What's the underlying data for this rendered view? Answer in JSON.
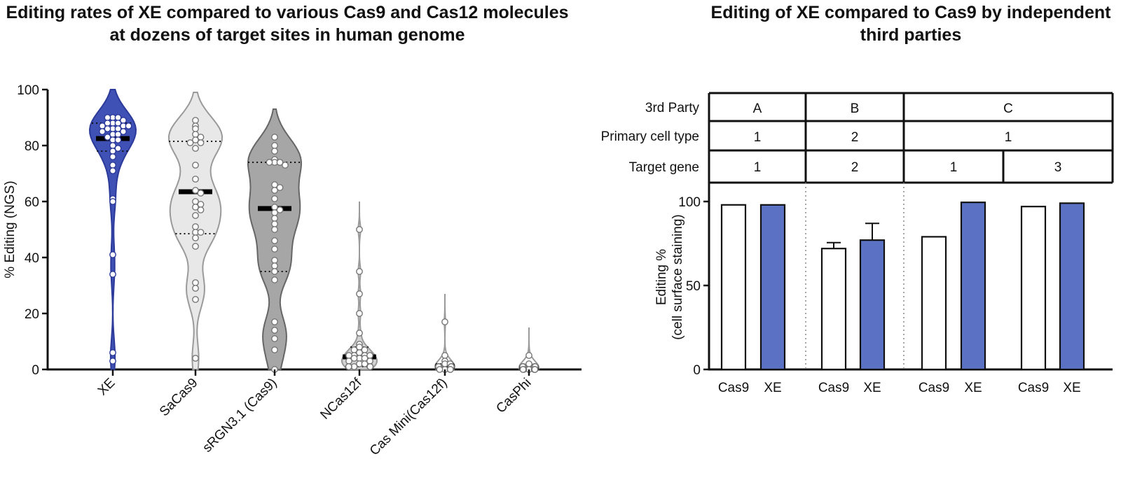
{
  "chart_data": [
    {
      "type": "violin",
      "title": "Editing rates of XE compared to various Cas9 and Cas12 molecules at dozens of target sites in human genome",
      "ylabel": "% Editing (NGS)",
      "xlabel": "",
      "ylim": [
        0,
        100
      ],
      "yticks": [
        "0",
        "20",
        "40",
        "60",
        "80",
        "100"
      ],
      "groups": [
        {
          "name": "XE",
          "fill": "#3f51b5",
          "median": 82.5,
          "quartiles": [
            78,
            88
          ],
          "points": [
            90,
            90,
            90,
            89,
            88,
            88,
            88,
            87,
            87,
            87,
            86,
            86,
            86,
            85,
            85,
            84,
            84,
            83,
            82,
            82,
            80,
            79,
            78,
            76,
            73,
            71,
            61,
            60,
            41,
            34,
            6,
            3
          ]
        },
        {
          "name": "SaCas9",
          "fill": "#e8e8e8",
          "median": 63.5,
          "quartiles": [
            48.5,
            81.5
          ],
          "points": [
            89,
            87,
            86,
            84,
            83,
            82,
            81,
            81,
            79,
            73,
            68,
            64,
            63,
            60,
            59,
            58,
            57,
            55,
            51,
            49,
            49,
            47,
            44,
            31,
            29,
            25,
            4
          ]
        },
        {
          "name": "sRGN3.1 (Cas9)",
          "fill": "#a6a6a6",
          "median": 57.5,
          "quartiles": [
            35,
            74
          ],
          "points": [
            83,
            80,
            78,
            75,
            74,
            74,
            74,
            73,
            66,
            65,
            64,
            61,
            58,
            57,
            56,
            54,
            52,
            50,
            46,
            43,
            39,
            37,
            35,
            32,
            17,
            14,
            11,
            7,
            0
          ]
        },
        {
          "name": "NCas12f",
          "fill": "#d4d4d4",
          "median": 4.5,
          "quartiles": [
            1,
            8
          ],
          "points": [
            50,
            35,
            27,
            20,
            13,
            9,
            8,
            7,
            7,
            6,
            5,
            5,
            5,
            5,
            4,
            4,
            4,
            3,
            3,
            2,
            2,
            1,
            1,
            1,
            1,
            1,
            1,
            1
          ]
        },
        {
          "name": "Cas Mini(Cas12f)",
          "fill": "#ffffff",
          "median": 1,
          "quartiles": [
            0,
            2
          ],
          "points": [
            17,
            5,
            3,
            2,
            2,
            1,
            1,
            1,
            1,
            1,
            1,
            1,
            1,
            1,
            1,
            1,
            1,
            0,
            0,
            0,
            0
          ]
        },
        {
          "name": "CasPhi",
          "fill": "#ffffff",
          "median": 0.5,
          "quartiles": [
            0,
            1
          ],
          "points": [
            5,
            2,
            1,
            1,
            1,
            1,
            1,
            1,
            1,
            1,
            1,
            1,
            1,
            0,
            0,
            0,
            0,
            0,
            0,
            0,
            0
          ]
        }
      ]
    },
    {
      "type": "bar",
      "title": "Editing of XE compared to Cas9 by independent third parties",
      "ylabel": "Editing %",
      "ylabel2": "(cell surface staining)",
      "ylim": [
        0,
        100
      ],
      "yticks": [
        "0",
        "50",
        "100"
      ],
      "table": {
        "row_labels": [
          "3rd Party",
          "Primary cell type",
          "Target gene"
        ],
        "third_party": [
          "A",
          "B",
          "C"
        ],
        "cell_type": [
          "1",
          "2",
          "1"
        ],
        "target_gene": [
          "1",
          "2",
          "1",
          "3"
        ]
      },
      "groups": [
        {
          "bars": [
            {
              "label": "Cas9",
              "value": 98,
              "color": "#ffffff"
            },
            {
              "label": "XE",
              "value": 98,
              "color": "#5b72c4"
            }
          ]
        },
        {
          "bars": [
            {
              "label": "Cas9",
              "value": 72,
              "error": 3.5,
              "color": "#ffffff"
            },
            {
              "label": "XE",
              "value": 77,
              "error": 10,
              "color": "#5b72c4"
            }
          ]
        },
        {
          "bars": [
            {
              "label": "Cas9",
              "value": 79,
              "color": "#ffffff"
            },
            {
              "label": "XE",
              "value": 99.5,
              "color": "#5b72c4"
            }
          ]
        },
        {
          "bars": [
            {
              "label": "Cas9",
              "value": 97,
              "color": "#ffffff"
            },
            {
              "label": "XE",
              "value": 99,
              "color": "#5b72c4"
            }
          ]
        }
      ]
    }
  ]
}
